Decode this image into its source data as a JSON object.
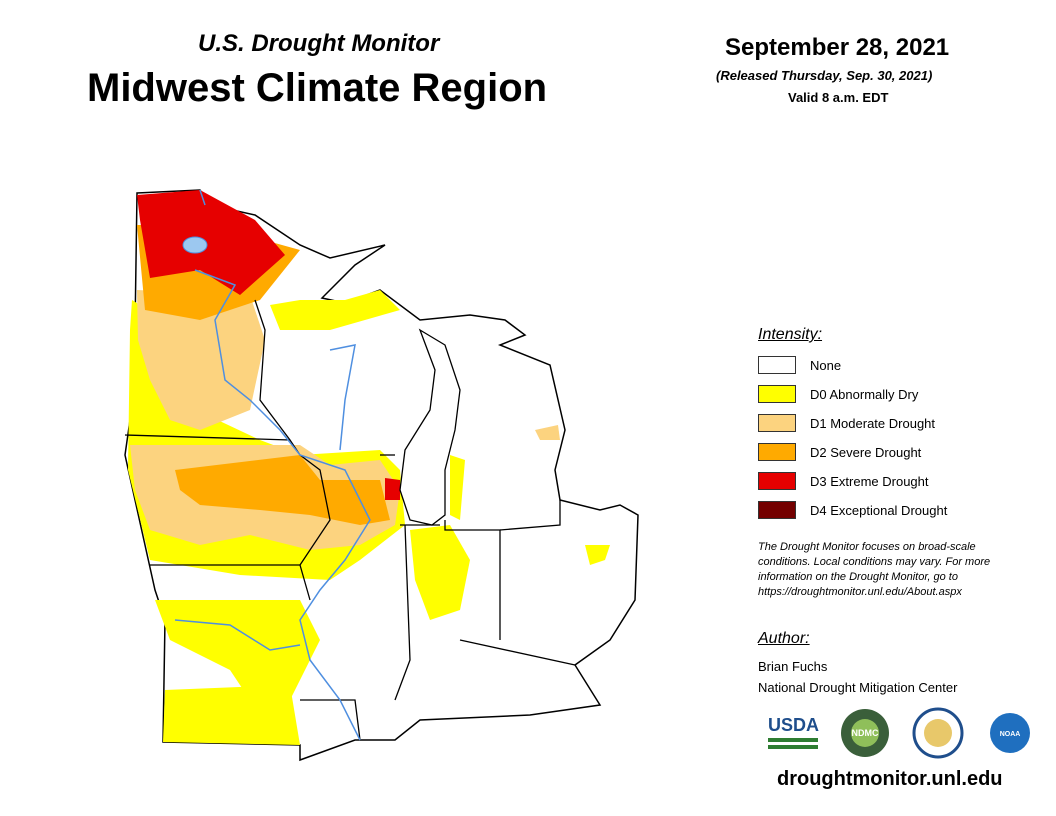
{
  "header": {
    "subtitle": "U.S. Drought Monitor",
    "title": "Midwest Climate Region",
    "date": "September 28, 2021",
    "released": "(Released Thursday, Sep. 30, 2021)",
    "valid": "Valid 8 a.m. EDT"
  },
  "legend": {
    "title": "Intensity:",
    "items": [
      {
        "label": "None",
        "color": "#ffffff"
      },
      {
        "label": "D0 Abnormally Dry",
        "color": "#ffff00"
      },
      {
        "label": "D1 Moderate Drought",
        "color": "#fcd37f"
      },
      {
        "label": "D2 Severe Drought",
        "color": "#ffaa00"
      },
      {
        "label": "D3 Extreme Drought",
        "color": "#e60000"
      },
      {
        "label": "D4 Exceptional Drought",
        "color": "#730000"
      }
    ]
  },
  "note": [
    "The Drought Monitor focuses on broad-scale",
    "conditions. Local conditions may vary. For more",
    "information on the Drought Monitor, go to",
    "https://droughtmonitor.unl.edu/About.aspx"
  ],
  "author": {
    "title": "Author:",
    "lines": [
      "Brian Fuchs",
      "National Drought Mitigation Center"
    ]
  },
  "logos": [
    "USDA",
    "NDMC",
    "NOAA"
  ],
  "url": "droughtmonitor.unl.edu"
}
